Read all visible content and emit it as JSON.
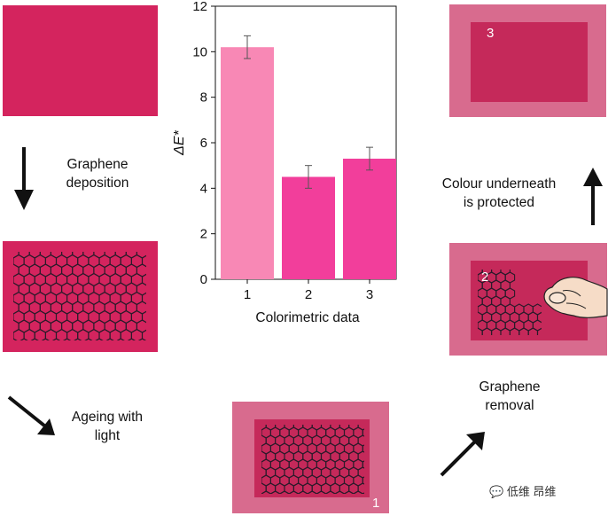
{
  "colors": {
    "fabric": "#d4245e",
    "fabric_dark": "#c71f55",
    "frame": "#d86b8e",
    "inner_dark": "#c5295a",
    "bar1": "#f888b5",
    "bar2": "#f23e9b",
    "bar3": "#f23e9b"
  },
  "captions": {
    "deposition": "Graphene\ndeposition",
    "ageing": "Ageing with\nlight",
    "removal": "Graphene\nremoval",
    "protected": "Colour underneath\nis protected"
  },
  "samples": {
    "s1": "1",
    "s2": "2",
    "s3": "3"
  },
  "watermark": {
    "text": "低维 昂维",
    "icon": "chat-bubbles-icon"
  },
  "chart_data": {
    "type": "bar",
    "categories": [
      "1",
      "2",
      "3"
    ],
    "values": [
      10.2,
      4.5,
      5.3
    ],
    "errors": [
      0.5,
      0.5,
      0.5
    ],
    "ylabel": "ΔE*",
    "xlabel": "Colorimetric data",
    "ylim": [
      0,
      12
    ],
    "yticks": [
      0,
      2,
      4,
      6,
      8,
      10,
      12
    ],
    "grid": false
  }
}
